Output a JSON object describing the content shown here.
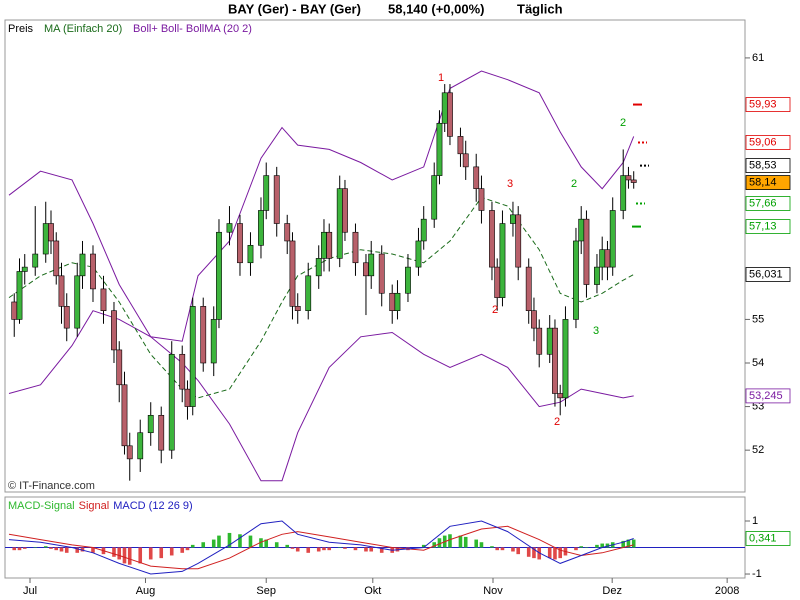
{
  "title": "BAY (Ger) - BAY (Ger)",
  "price": "58,140 (+0,00%)",
  "period": "Täglich",
  "watermark": "© IT-Finance.com",
  "chart_data": [
    {
      "type": "candlestick",
      "candle_name": "Preis",
      "up_color": "#3cb43c",
      "down_color": "#b8606a",
      "xlim": [
        -4.76,
        136.2
      ],
      "xticks": [
        {
          "value": 0,
          "label": "Jul"
        },
        {
          "value": 22,
          "label": "Aug"
        },
        {
          "value": 45,
          "label": "Sep"
        },
        {
          "value": 65.3,
          "label": "Okt"
        },
        {
          "value": 88.2,
          "label": "Nov"
        },
        {
          "value": 110.9,
          "label": "Dez"
        },
        {
          "value": 132.8,
          "label": "2008"
        }
      ],
      "ylim": [
        51.04,
        61.87
      ],
      "yticks": [
        52,
        53,
        54,
        55,
        61
      ],
      "x": [
        -3,
        -2,
        -1,
        1,
        3,
        4,
        5,
        6,
        7,
        9,
        10,
        12,
        14,
        16,
        17,
        18,
        19,
        21,
        23,
        25,
        27,
        29,
        30,
        31,
        33,
        35,
        36,
        38,
        40,
        42,
        44,
        45,
        47,
        49,
        50,
        51,
        53,
        55,
        56,
        57,
        59,
        60,
        62,
        64,
        65,
        67,
        69,
        70,
        72,
        74,
        75,
        77,
        78,
        79,
        80,
        82,
        83,
        85,
        86,
        88,
        89,
        90,
        92,
        93,
        95,
        96,
        97,
        99,
        100,
        101,
        102,
        104,
        105,
        106,
        108,
        109,
        110,
        111,
        113,
        114,
        115
      ],
      "ohlc": [
        [
          55.4,
          55.6,
          54.6,
          55.0
        ],
        [
          55.0,
          56.4,
          54.9,
          56.1
        ],
        [
          56.1,
          56.5,
          55.8,
          56.2
        ],
        [
          56.2,
          57.6,
          56.0,
          56.5
        ],
        [
          56.5,
          57.7,
          56.3,
          57.2
        ],
        [
          57.2,
          57.5,
          56.5,
          56.8
        ],
        [
          56.8,
          57.0,
          55.8,
          56.0
        ],
        [
          56.0,
          56.3,
          54.9,
          55.3
        ],
        [
          55.3,
          55.6,
          54.5,
          54.8
        ],
        [
          54.8,
          56.3,
          54.6,
          56.0
        ],
        [
          56.0,
          56.8,
          55.7,
          56.5
        ],
        [
          56.5,
          56.7,
          55.4,
          55.7
        ],
        [
          55.7,
          56.0,
          54.9,
          55.2
        ],
        [
          55.2,
          55.4,
          54.0,
          54.3
        ],
        [
          54.3,
          54.5,
          53.1,
          53.5
        ],
        [
          53.5,
          53.8,
          51.9,
          52.1
        ],
        [
          52.1,
          52.4,
          51.3,
          51.8
        ],
        [
          51.8,
          52.7,
          51.5,
          52.4
        ],
        [
          52.4,
          53.1,
          52.1,
          52.8
        ],
        [
          52.8,
          53.0,
          51.7,
          52.0
        ],
        [
          52.0,
          54.5,
          51.8,
          54.2
        ],
        [
          54.2,
          54.4,
          53.1,
          53.4
        ],
        [
          53.4,
          53.6,
          52.7,
          53.0
        ],
        [
          53.0,
          55.5,
          52.8,
          55.3
        ],
        [
          55.3,
          55.5,
          53.8,
          54.0
        ],
        [
          54.0,
          55.3,
          53.7,
          55.0
        ],
        [
          55.0,
          57.3,
          54.8,
          57.0
        ],
        [
          57.0,
          57.6,
          56.7,
          57.2
        ],
        [
          57.2,
          57.4,
          56.0,
          56.3
        ],
        [
          56.3,
          57.0,
          56.0,
          56.7
        ],
        [
          56.7,
          57.8,
          56.4,
          57.5
        ],
        [
          57.5,
          58.6,
          57.3,
          58.3
        ],
        [
          58.3,
          58.5,
          56.9,
          57.2
        ],
        [
          57.2,
          57.4,
          56.5,
          56.8
        ],
        [
          56.8,
          57.0,
          55.0,
          55.3
        ],
        [
          55.3,
          55.6,
          54.9,
          55.2
        ],
        [
          55.2,
          56.3,
          55.0,
          56.0
        ],
        [
          56.0,
          56.7,
          55.7,
          56.4
        ],
        [
          56.4,
          57.3,
          56.1,
          57.0
        ],
        [
          57.0,
          57.2,
          56.1,
          56.4
        ],
        [
          56.4,
          58.3,
          56.2,
          58.0
        ],
        [
          58.0,
          58.2,
          56.8,
          57.0
        ],
        [
          57.0,
          57.2,
          56.0,
          56.3
        ],
        [
          56.3,
          56.5,
          55.1,
          56.0
        ],
        [
          56.0,
          56.8,
          55.7,
          56.5
        ],
        [
          56.5,
          56.7,
          55.3,
          55.6
        ],
        [
          55.6,
          55.8,
          54.9,
          55.2
        ],
        [
          55.2,
          55.9,
          55.0,
          55.6
        ],
        [
          55.6,
          56.5,
          55.4,
          56.2
        ],
        [
          56.2,
          57.1,
          56.0,
          56.8
        ],
        [
          56.8,
          57.6,
          56.6,
          57.3
        ],
        [
          57.3,
          58.6,
          57.1,
          58.3
        ],
        [
          58.3,
          59.8,
          58.1,
          59.5
        ],
        [
          59.5,
          60.4,
          59.3,
          60.2
        ],
        [
          60.2,
          60.4,
          59.0,
          59.2
        ],
        [
          59.2,
          59.4,
          58.5,
          58.8
        ],
        [
          58.8,
          59.1,
          58.2,
          58.5
        ],
        [
          58.5,
          58.8,
          57.7,
          58.0
        ],
        [
          58.0,
          58.3,
          57.2,
          57.5
        ],
        [
          57.5,
          57.7,
          55.9,
          56.2
        ],
        [
          56.2,
          56.4,
          55.2,
          55.5
        ],
        [
          55.5,
          57.5,
          55.3,
          57.2
        ],
        [
          57.2,
          57.7,
          56.9,
          57.4
        ],
        [
          57.4,
          57.6,
          55.9,
          56.2
        ],
        [
          56.2,
          56.4,
          54.9,
          55.2
        ],
        [
          55.2,
          55.5,
          54.5,
          54.8
        ],
        [
          54.8,
          55.0,
          53.9,
          54.2
        ],
        [
          54.2,
          55.1,
          54.0,
          54.8
        ],
        [
          54.8,
          55.0,
          53.0,
          53.3
        ],
        [
          53.3,
          53.5,
          52.8,
          53.2
        ],
        [
          53.2,
          55.3,
          53.0,
          55.0
        ],
        [
          55.0,
          57.1,
          54.8,
          56.8
        ],
        [
          56.8,
          57.6,
          56.5,
          57.3
        ],
        [
          57.3,
          57.5,
          55.5,
          55.8
        ],
        [
          55.8,
          56.5,
          55.6,
          56.2
        ],
        [
          56.2,
          56.9,
          55.9,
          56.6
        ],
        [
          56.6,
          56.8,
          55.9,
          56.2
        ],
        [
          56.2,
          57.8,
          56.0,
          57.5
        ],
        [
          57.5,
          58.9,
          57.3,
          58.3
        ],
        [
          58.3,
          58.5,
          58.0,
          58.2
        ],
        [
          58.2,
          58.4,
          58.0,
          58.14
        ]
      ],
      "series": [
        {
          "name": "MA (Einfach 20)",
          "color": "#1a6b1a",
          "x": [
            -4,
            2,
            8,
            12,
            17,
            23,
            29,
            32,
            38,
            44,
            48,
            51,
            57,
            63,
            69,
            75,
            80,
            86,
            91,
            97,
            101,
            105,
            109,
            113,
            115
          ],
          "values": [
            55.5,
            56.0,
            56.3,
            56.2,
            55.4,
            54.2,
            53.4,
            53.2,
            53.4,
            54.5,
            55.4,
            56.0,
            56.4,
            56.6,
            56.5,
            56.3,
            56.8,
            57.8,
            57.6,
            56.6,
            55.6,
            55.4,
            55.6,
            55.9,
            56.031
          ]
        },
        {
          "name": "Boll+ Boll- BollMA (20 2)",
          "color": "#7a1aa0",
          "x": [
            -4,
            2,
            8,
            12,
            17,
            23,
            29,
            32,
            38,
            44,
            48,
            51,
            57,
            63,
            69,
            75,
            80,
            86,
            91,
            97,
            101,
            105,
            109,
            113,
            115
          ],
          "upper": [
            57.85,
            58.4,
            58.2,
            57.2,
            55.8,
            54.6,
            54.5,
            56.0,
            56.8,
            58.7,
            59.4,
            59.0,
            58.9,
            58.6,
            58.2,
            58.5,
            60.3,
            60.7,
            60.5,
            60.2,
            59.3,
            58.5,
            58.0,
            58.6,
            59.2
          ],
          "lower": [
            53.3,
            53.5,
            54.4,
            55.2,
            55.0,
            54.6,
            54.0,
            53.6,
            52.6,
            51.3,
            51.3,
            52.4,
            53.9,
            54.6,
            54.7,
            54.2,
            53.9,
            54.2,
            53.9,
            53.0,
            53.1,
            53.4,
            53.3,
            53.2,
            53.245
          ]
        }
      ],
      "level_labels": [
        {
          "value": 59.93,
          "label": "59,93",
          "color": "#e00000"
        },
        {
          "value": 59.06,
          "label": "59,06",
          "color": "#e00000"
        },
        {
          "value": 58.53,
          "label": "58,53",
          "color": "#000000"
        },
        {
          "value": 58.14,
          "label": "58,14",
          "color": "#000000"
        },
        {
          "value": 57.66,
          "label": "57,66",
          "color": "#00a000"
        },
        {
          "value": 57.13,
          "label": "57,13",
          "color": "#00a000"
        },
        {
          "value": 56.031,
          "label": "56,031",
          "color": "#000000"
        },
        {
          "value": 53.245,
          "label": "53,245",
          "color": "#7a1aa0"
        }
      ],
      "wave_labels": [
        {
          "text": "1",
          "color": "#e00000"
        },
        {
          "text": "2",
          "color": "#00a000"
        },
        {
          "text": "3",
          "color": "#e00000"
        },
        {
          "text": "2",
          "color": "#00a000"
        },
        {
          "text": "2",
          "color": "#e00000"
        },
        {
          "text": "3",
          "color": "#00a000"
        },
        {
          "text": "2",
          "color": "#e00000"
        }
      ]
    },
    {
      "type": "macd",
      "xlim": [
        -4.76,
        136.2
      ],
      "ylim": [
        -1.15,
        1.906
      ],
      "yticks": [
        -1,
        1
      ],
      "series": [
        {
          "name": "MACD-Signal",
          "color": "#2eb82e",
          "neg_color": "#e04848",
          "x": [
            -3,
            -2,
            -1,
            1,
            3,
            4,
            5,
            6,
            7,
            9,
            10,
            12,
            14,
            16,
            17,
            18,
            19,
            21,
            23,
            25,
            27,
            29,
            30,
            31,
            33,
            35,
            36,
            38,
            40,
            42,
            44,
            45,
            47,
            49,
            50,
            51,
            53,
            55,
            56,
            57,
            59,
            60,
            62,
            64,
            65,
            67,
            69,
            70,
            72,
            74,
            75,
            77,
            78,
            79,
            80,
            82,
            83,
            85,
            86,
            88,
            89,
            90,
            92,
            93,
            95,
            96,
            97,
            99,
            100,
            101,
            102,
            104,
            105,
            106,
            108,
            109,
            110,
            111,
            113,
            114,
            115
          ],
          "values": [
            -0.1,
            -0.1,
            -0.05,
            0.0,
            0.05,
            -0.05,
            -0.1,
            -0.15,
            -0.2,
            -0.2,
            -0.15,
            -0.2,
            -0.25,
            -0.35,
            -0.45,
            -0.6,
            -0.65,
            -0.6,
            -0.45,
            -0.4,
            -0.3,
            -0.2,
            -0.1,
            0.1,
            0.2,
            0.3,
            0.45,
            0.55,
            0.5,
            0.45,
            0.35,
            0.3,
            0.2,
            0.1,
            -0.05,
            -0.15,
            -0.2,
            -0.15,
            -0.1,
            -0.1,
            0.0,
            -0.05,
            -0.1,
            -0.15,
            -0.15,
            -0.2,
            -0.2,
            -0.15,
            -0.1,
            0.0,
            0.1,
            0.2,
            0.35,
            0.45,
            0.5,
            0.45,
            0.4,
            0.3,
            0.2,
            0.05,
            -0.1,
            -0.1,
            -0.15,
            -0.25,
            -0.35,
            -0.4,
            -0.45,
            -0.4,
            -0.45,
            -0.4,
            -0.3,
            -0.1,
            0.05,
            0.0,
            0.1,
            0.15,
            0.15,
            0.2,
            0.25,
            0.3,
            0.3
          ]
        },
        {
          "name": "Signal",
          "color": "#d02020",
          "x": [
            -4,
            2,
            8,
            12,
            17,
            23,
            29,
            32,
            38,
            44,
            48,
            51,
            57,
            63,
            69,
            75,
            80,
            86,
            91,
            97,
            101,
            105,
            109,
            113,
            115
          ],
          "values": [
            0.5,
            0.3,
            0.1,
            0.0,
            -0.3,
            -0.7,
            -0.8,
            -0.8,
            -0.4,
            0.2,
            0.5,
            0.6,
            0.4,
            0.2,
            0.0,
            -0.1,
            0.3,
            0.7,
            0.8,
            0.3,
            -0.1,
            -0.3,
            -0.2,
            0.0,
            0.1
          ]
        },
        {
          "name": "MACD (12 26 9)",
          "color": "#2020c0",
          "x": [
            -4,
            2,
            8,
            12,
            17,
            23,
            29,
            32,
            38,
            44,
            48,
            51,
            57,
            63,
            69,
            75,
            80,
            86,
            91,
            97,
            101,
            105,
            109,
            113,
            115
          ],
          "values": [
            0.3,
            0.2,
            0.0,
            -0.2,
            -0.6,
            -1.0,
            -0.9,
            -0.6,
            0.1,
            0.9,
            1.0,
            0.5,
            0.2,
            0.1,
            -0.1,
            0.0,
            0.8,
            1.0,
            0.6,
            -0.2,
            -0.6,
            -0.3,
            0.0,
            0.2,
            0.341
          ]
        }
      ],
      "level_labels": [
        {
          "value": 0.341,
          "label": "0,341",
          "color": "#00a000"
        }
      ]
    }
  ]
}
